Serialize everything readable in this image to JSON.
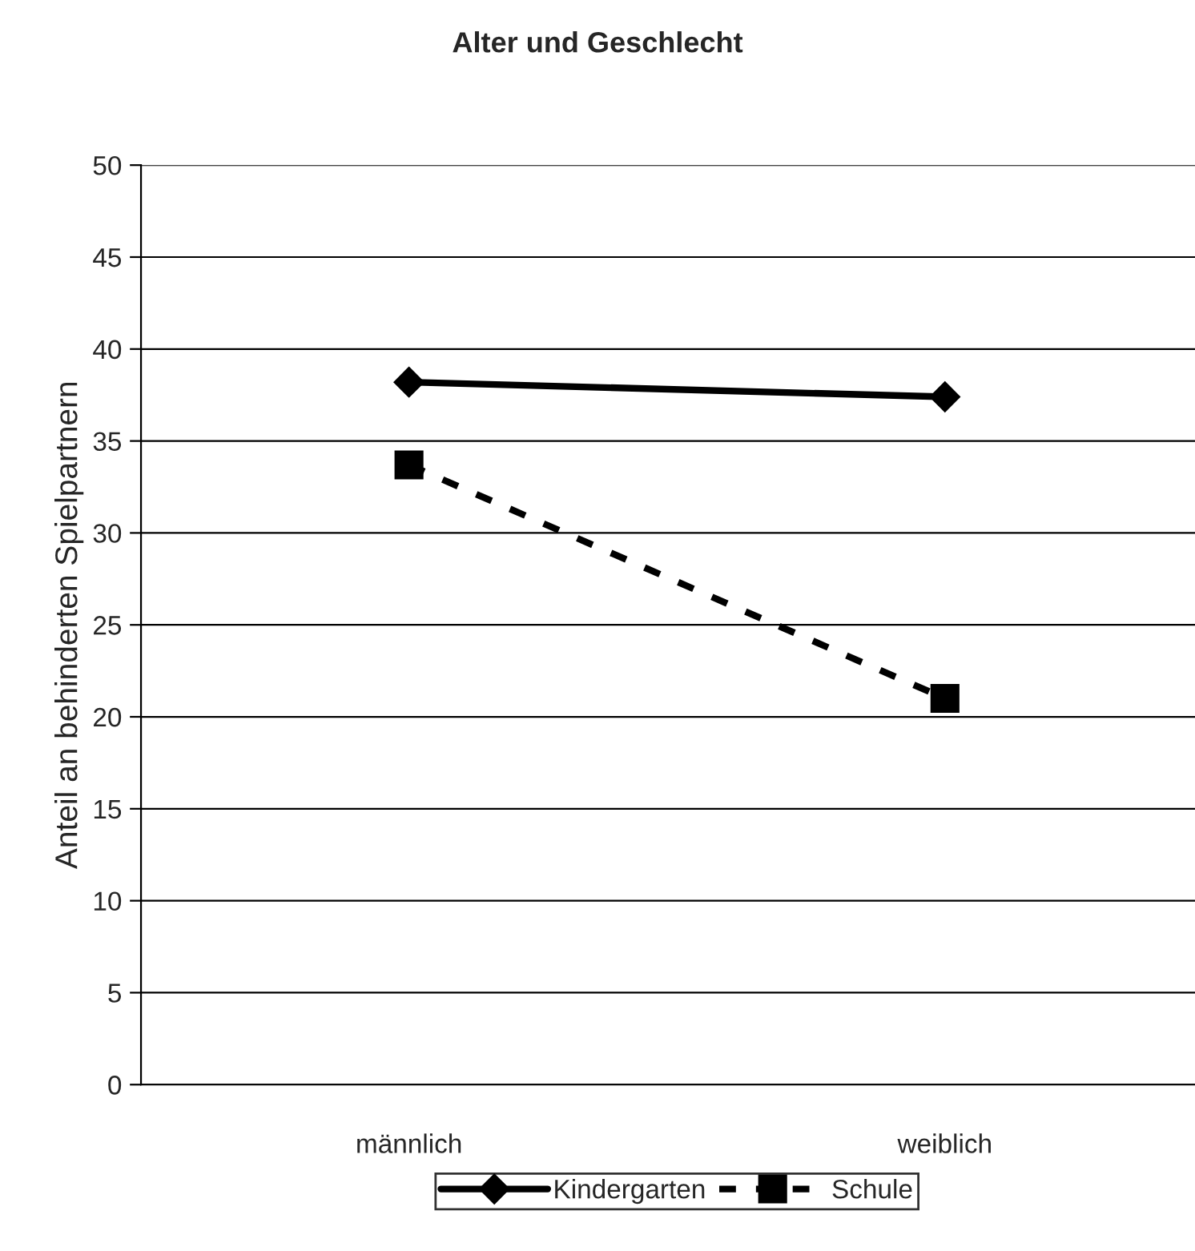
{
  "chart_data": {
    "type": "line",
    "title": "Alter und Geschlecht",
    "ylabel": "Anteil an behinderten Spielpartnern",
    "categories": [
      "männlich",
      "weiblich"
    ],
    "series": [
      {
        "name": "Kindergarten",
        "color": "#000000",
        "values": [
          38.2,
          37.4
        ],
        "marker": "diamond",
        "line_style": "solid"
      },
      {
        "name": "Schule",
        "color": "#000000",
        "values": [
          33.7,
          21.0
        ],
        "marker": "square",
        "line_style": "dashed"
      }
    ],
    "ylim": [
      0,
      50
    ],
    "yticks": [
      0,
      5,
      10,
      15,
      20,
      25,
      30,
      35,
      40,
      45,
      50
    ],
    "grid": "y",
    "legend": "bottom"
  }
}
